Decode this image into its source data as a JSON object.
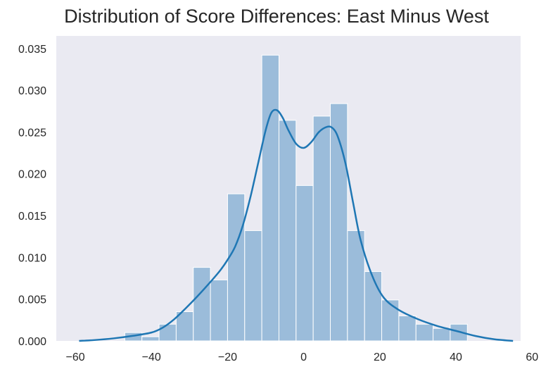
{
  "chart_data": {
    "type": "bar",
    "title": "Distribution of Score Differences: East Minus West",
    "xlabel": "",
    "ylabel": "",
    "xlim": [
      -65,
      57
    ],
    "ylim": [
      0,
      0.0365
    ],
    "xticks": [
      -60,
      -40,
      -20,
      0,
      20,
      40,
      60
    ],
    "xtick_labels": [
      "−60",
      "−40",
      "−20",
      "0",
      "20",
      "40",
      "60"
    ],
    "yticks": [
      0.0,
      0.005,
      0.01,
      0.015,
      0.02,
      0.025,
      0.03,
      0.035
    ],
    "ytick_labels": [
      "0.000",
      "0.005",
      "0.010",
      "0.015",
      "0.020",
      "0.025",
      "0.030",
      "0.035"
    ],
    "grid": false,
    "histogram": {
      "bin_edges": [
        -47,
        -42.5,
        -38,
        -33.5,
        -29,
        -24.5,
        -20,
        -15.5,
        -11,
        -6.5,
        -2,
        2.5,
        7,
        11.5,
        16,
        20.5,
        25,
        29.5,
        34,
        38.5,
        43
      ],
      "heights": [
        0.001,
        0.0005,
        0.002,
        0.0035,
        0.0088,
        0.0073,
        0.0176,
        0.0132,
        0.0342,
        0.0264,
        0.0186,
        0.0269,
        0.0284,
        0.0132,
        0.0083,
        0.0049,
        0.003,
        0.002,
        0.0015,
        0.002
      ],
      "color": "#9bbcda"
    },
    "kde": {
      "x": [
        -59,
        -55,
        -50,
        -45,
        -40,
        -37,
        -34,
        -31,
        -28,
        -25,
        -22,
        -20,
        -18,
        -16,
        -14,
        -12,
        -10,
        -8.5,
        -7,
        -5.5,
        -4,
        -2,
        0,
        2,
        4,
        6,
        7.5,
        9,
        11,
        13,
        15,
        18,
        21,
        25,
        30,
        35,
        40,
        45,
        50,
        55
      ],
      "y": [
        0.0,
        0.0001,
        0.0003,
        0.0006,
        0.001,
        0.0016,
        0.0026,
        0.0039,
        0.0053,
        0.0068,
        0.0084,
        0.0097,
        0.0113,
        0.0138,
        0.0172,
        0.0212,
        0.0252,
        0.0273,
        0.0276,
        0.0267,
        0.0252,
        0.0236,
        0.0231,
        0.0238,
        0.025,
        0.0256,
        0.0255,
        0.0244,
        0.0212,
        0.0165,
        0.012,
        0.0078,
        0.0052,
        0.0037,
        0.0026,
        0.0018,
        0.0012,
        0.0006,
        0.0002,
        0.0
      ]
    }
  }
}
